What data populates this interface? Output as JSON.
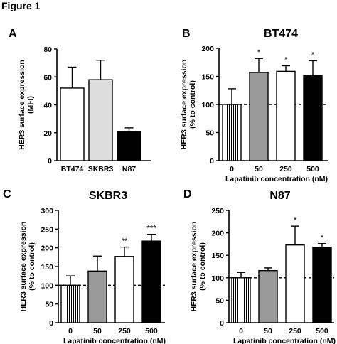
{
  "figure_title": "Figure 1",
  "chart_data": [
    {
      "panel": "A",
      "type": "bar",
      "title": "",
      "categories": [
        "BT474",
        "SKBR3",
        "N87"
      ],
      "values": [
        52,
        58,
        21
      ],
      "errors": [
        15,
        14,
        2.5
      ],
      "bar_fills": [
        "#ffffff",
        "#dddddd",
        "#000000"
      ],
      "bar_patterns": [
        "none",
        "none",
        "none"
      ],
      "significance": [
        "",
        "",
        ""
      ],
      "ylabel": "HER3 surface expression\n(MFI)",
      "xlabel": "",
      "ylim": [
        0,
        80
      ],
      "yticks": [
        0,
        20,
        40,
        60,
        80
      ],
      "reference_line": null,
      "grid": false
    },
    {
      "panel": "B",
      "type": "bar",
      "title": "BT474",
      "categories": [
        "0",
        "50",
        "250",
        "500"
      ],
      "values": [
        100,
        157,
        159,
        151
      ],
      "errors": [
        28,
        25,
        10,
        27
      ],
      "bar_fills": [
        "#ffffff",
        "#999999",
        "#ffffff",
        "#000000"
      ],
      "bar_patterns": [
        "vertical-lines",
        "none",
        "none",
        "none"
      ],
      "significance": [
        "",
        "*",
        "*",
        "*"
      ],
      "ylabel": "HER3 surface expression\n(% to control)",
      "xlabel": "Lapatinib concentration (nM)",
      "ylim": [
        0,
        200
      ],
      "yticks": [
        0,
        50,
        100,
        150,
        200
      ],
      "reference_line": 100,
      "grid": false
    },
    {
      "panel": "C",
      "type": "bar",
      "title": "SKBR3",
      "categories": [
        "0",
        "50",
        "250",
        "500"
      ],
      "values": [
        100,
        138,
        177,
        218
      ],
      "errors": [
        25,
        40,
        25,
        18
      ],
      "bar_fills": [
        "#ffffff",
        "#999999",
        "#ffffff",
        "#000000"
      ],
      "bar_patterns": [
        "vertical-lines",
        "none",
        "none",
        "none"
      ],
      "significance": [
        "",
        "",
        "**",
        "***"
      ],
      "ylabel": "HER3 surface expression\n(% to control)",
      "xlabel": "Lapatinib concentration (nM)",
      "ylim": [
        0,
        300
      ],
      "yticks": [
        0,
        50,
        100,
        150,
        200,
        250,
        300
      ],
      "reference_line": 100,
      "grid": false
    },
    {
      "panel": "D",
      "type": "bar",
      "title": "N87",
      "categories": [
        "0",
        "50",
        "250",
        "500"
      ],
      "values": [
        100,
        116,
        173,
        168
      ],
      "errors": [
        12,
        6,
        42,
        8
      ],
      "bar_fills": [
        "#ffffff",
        "#999999",
        "#ffffff",
        "#000000"
      ],
      "bar_patterns": [
        "vertical-lines",
        "none",
        "none",
        "none"
      ],
      "significance": [
        "",
        "",
        "*",
        "*"
      ],
      "ylabel": "HER3 surface expression\n(% to control)",
      "xlabel": "Lapatinib concentration (nM)",
      "ylim": [
        0,
        250
      ],
      "yticks": [
        0,
        50,
        100,
        150,
        200,
        250
      ],
      "reference_line": 100,
      "grid": false
    }
  ]
}
